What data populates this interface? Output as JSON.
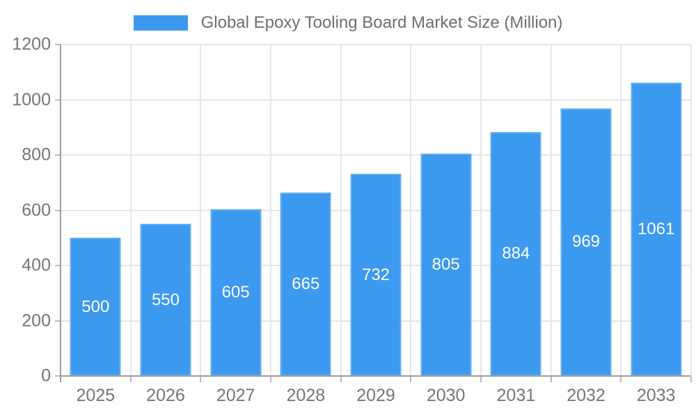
{
  "legend": {
    "label": "Global Epoxy Tooling Board Market Size (Million)"
  },
  "chart_data": {
    "type": "bar",
    "categories": [
      "2025",
      "2026",
      "2027",
      "2028",
      "2029",
      "2030",
      "2031",
      "2032",
      "2033"
    ],
    "values": [
      500,
      550,
      605,
      665,
      732,
      805,
      884,
      969,
      1061
    ],
    "title": "Global Epoxy Tooling Board Market Size (Million)",
    "xlabel": "",
    "ylabel": "",
    "ylim": [
      0,
      1200
    ],
    "yticks": [
      0,
      200,
      400,
      600,
      800,
      1000,
      1200
    ],
    "grid": true,
    "legend_position": "top-center",
    "value_label_position": "inside-middle"
  },
  "colors": {
    "bar": "#3B99F0",
    "grid": "#E6E6E6",
    "axis": "#9C9C9C",
    "tick": "#B9B9B9",
    "tick_label": "#757575",
    "legend_text": "#6E6E6E",
    "value_label": "#FFFFFF",
    "background": "#FFFFFF"
  }
}
